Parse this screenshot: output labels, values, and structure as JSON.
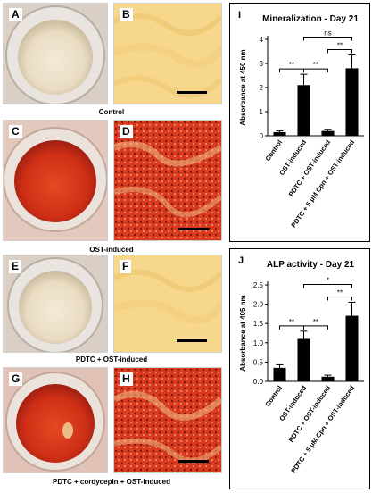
{
  "panels": [
    {
      "key": "A",
      "kind": "well",
      "fill": "pale"
    },
    {
      "key": "B",
      "kind": "micro",
      "fill": "yellow"
    },
    {
      "key": "C",
      "kind": "well",
      "fill": "red"
    },
    {
      "key": "D",
      "kind": "micro",
      "fill": "stained"
    },
    {
      "key": "E",
      "kind": "well",
      "fill": "pale"
    },
    {
      "key": "F",
      "kind": "micro",
      "fill": "yellow"
    },
    {
      "key": "G",
      "kind": "well",
      "fill": "red"
    },
    {
      "key": "H",
      "kind": "micro",
      "fill": "stained"
    }
  ],
  "captions": {
    "control": "Control",
    "ost": "OST-induced",
    "pdtc": "PDTC + OST-induced",
    "pdtc_cordycepin": "PDTC + cordycepin + OST-induced"
  },
  "colors": {
    "yellow_bg": "#f6d78c",
    "stain_red": "#d93a1e",
    "well_red": "#d8331a",
    "well_pale": "#efe4cf",
    "bar": "#000000"
  },
  "chart_data": [
    {
      "panel": "I",
      "type": "bar",
      "title": "Mineralization - Day 21",
      "ylabel": "Absorbance at 450 nm",
      "xlabel": "",
      "ylim": [
        0,
        4
      ],
      "yticks": [
        0,
        1,
        2,
        3,
        4
      ],
      "categories": [
        "Control",
        "OST-induced",
        "PDTC + OST-induced",
        "PDTC + 5 μM Cpn + OST-induced"
      ],
      "values": [
        0.15,
        2.1,
        0.2,
        2.8
      ],
      "errors": [
        0.05,
        0.45,
        0.07,
        0.55
      ],
      "significance": [
        {
          "from": 0,
          "to": 1,
          "label": "**"
        },
        {
          "from": 1,
          "to": 2,
          "label": "**"
        },
        {
          "from": 2,
          "to": 3,
          "label": "**"
        },
        {
          "from": 1,
          "to": 3,
          "label": "ns"
        }
      ]
    },
    {
      "panel": "J",
      "type": "bar",
      "title": "ALP activity - Day 21",
      "ylabel": "Absorbance at 405 nm",
      "xlabel": "",
      "ylim": [
        0,
        2.5
      ],
      "yticks": [
        0.0,
        0.5,
        1.0,
        1.5,
        2.0,
        2.5
      ],
      "categories": [
        "Control",
        "OST-induced",
        "PDTC + OST-induced",
        "PDTC + 5 μM Cpn + OST-induced"
      ],
      "values": [
        0.35,
        1.1,
        0.12,
        1.7
      ],
      "errors": [
        0.08,
        0.2,
        0.04,
        0.35
      ],
      "significance": [
        {
          "from": 0,
          "to": 1,
          "label": "**"
        },
        {
          "from": 1,
          "to": 2,
          "label": "**"
        },
        {
          "from": 2,
          "to": 3,
          "label": "**"
        },
        {
          "from": 1,
          "to": 3,
          "label": "*"
        }
      ]
    }
  ]
}
